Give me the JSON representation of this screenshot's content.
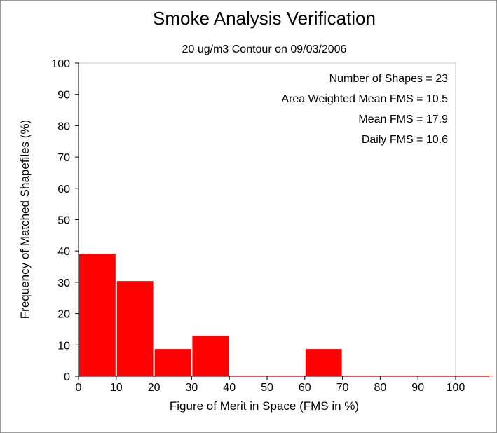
{
  "chart_data": {
    "type": "bar",
    "title": "Smoke Analysis Verification",
    "subtitle": "20 ug/m3 Contour on 09/03/2006",
    "xlabel": "Figure of Merit in Space (FMS in %)",
    "ylabel": "Frequency of Matched Shapefiles (%)",
    "xlim": [
      0,
      110
    ],
    "ylim": [
      0,
      100
    ],
    "xticks": [
      "0",
      "10",
      "20",
      "30",
      "40",
      "50",
      "60",
      "70",
      "80",
      "90",
      "100"
    ],
    "yticks": [
      "0",
      "10",
      "20",
      "30",
      "40",
      "50",
      "60",
      "70",
      "80",
      "90",
      "100"
    ],
    "bins": [
      {
        "x0": 0,
        "x1": 10,
        "value": 39.1
      },
      {
        "x0": 10,
        "x1": 20,
        "value": 30.4
      },
      {
        "x0": 20,
        "x1": 30,
        "value": 8.7
      },
      {
        "x0": 30,
        "x1": 40,
        "value": 13.0
      },
      {
        "x0": 40,
        "x1": 50,
        "value": 0
      },
      {
        "x0": 50,
        "x1": 60,
        "value": 0
      },
      {
        "x0": 60,
        "x1": 70,
        "value": 8.7
      },
      {
        "x0": 70,
        "x1": 80,
        "value": 0
      },
      {
        "x0": 80,
        "x1": 90,
        "value": 0
      },
      {
        "x0": 90,
        "x1": 100,
        "value": 0
      },
      {
        "x0": 100,
        "x1": 110,
        "value": 0
      }
    ],
    "bar_color": "#ff0000",
    "annotations": [
      "Number of Shapes = 23",
      "Area Weighted Mean FMS = 10.5",
      "Mean FMS = 17.9",
      "Daily FMS = 10.6"
    ],
    "grid": false
  }
}
